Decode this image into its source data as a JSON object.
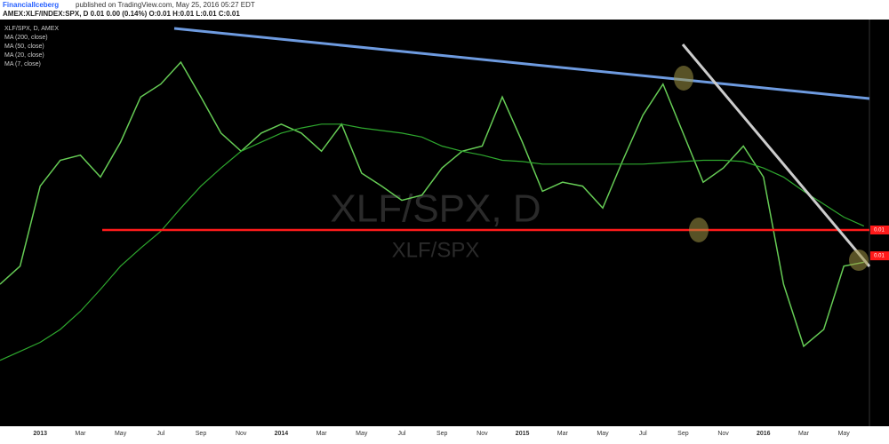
{
  "header": {
    "author": "FinancialIceberg",
    "published": "published on TradingView.com, May 25, 2016 05:27 EDT",
    "quote": "AMEX:XLF/INDEX:SPX, D  0.01 0.00 (0.14%)  O:0.01 H:0.01 L:0.01 C:0.01"
  },
  "chart_data": {
    "type": "line",
    "watermark": [
      "XLF/SPX, D",
      "XLF/SPX"
    ],
    "other_indicators": [
      "MA (50, close)",
      "MA (20, close)",
      "MA (7, close)"
    ],
    "categories": [
      null,
      null,
      "2013",
      null,
      "Mar",
      null,
      "May",
      null,
      "Jul",
      null,
      "Sep",
      null,
      "Nov",
      null,
      "2014",
      null,
      "Mar",
      null,
      "May",
      null,
      "Jul",
      null,
      "Sep",
      null,
      "Nov",
      null,
      "2015",
      null,
      "Mar",
      null,
      "May",
      null,
      "Jul",
      null,
      "Sep",
      null,
      "Nov",
      null,
      "2016",
      null,
      "Mar",
      null,
      "May",
      null
    ],
    "series": [
      {
        "name": "XLF/SPX, D, AMEX",
        "color": "#66cc55",
        "values": [
          0.01138,
          0.01152,
          0.01214,
          0.01234,
          0.01238,
          0.01221,
          0.01248,
          0.01283,
          0.01293,
          0.0131,
          0.01283,
          0.01255,
          0.01241,
          0.01255,
          0.01262,
          0.01255,
          0.01241,
          0.01262,
          0.01224,
          0.01214,
          0.01203,
          0.01207,
          0.01228,
          0.01241,
          0.01245,
          0.01283,
          0.01248,
          0.0121,
          0.01217,
          0.01214,
          0.01197,
          0.01234,
          0.01269,
          0.01293,
          0.01255,
          0.01217,
          0.01228,
          0.01245,
          0.01221,
          0.01138,
          0.0109,
          0.01103,
          0.01152,
          0.01155
        ]
      },
      {
        "name": "MA (200, close)",
        "color": "#2ea82e",
        "values": [
          0.01079,
          0.01086,
          0.01093,
          0.01103,
          0.01117,
          0.01134,
          0.01152,
          0.01166,
          0.01179,
          0.01197,
          0.01214,
          0.01228,
          0.01241,
          0.01248,
          0.01255,
          0.01259,
          0.01262,
          0.01262,
          0.01259,
          0.01257,
          0.01255,
          0.01252,
          0.01245,
          0.01241,
          0.01238,
          0.01234,
          0.01233,
          0.01231,
          0.01231,
          0.01231,
          0.01231,
          0.01231,
          0.01231,
          0.01232,
          0.01233,
          0.01234,
          0.01234,
          0.01233,
          0.01228,
          0.01221,
          0.0121,
          0.012,
          0.0119,
          0.01183
        ]
      }
    ],
    "ylim": [
      0.01028,
      0.01343
    ],
    "price_labels": [
      {
        "value": 0.0118,
        "label": "0.01"
      },
      {
        "value": 0.0116,
        "label": "0.01"
      }
    ],
    "support_color": "#ff1a1a"
  }
}
